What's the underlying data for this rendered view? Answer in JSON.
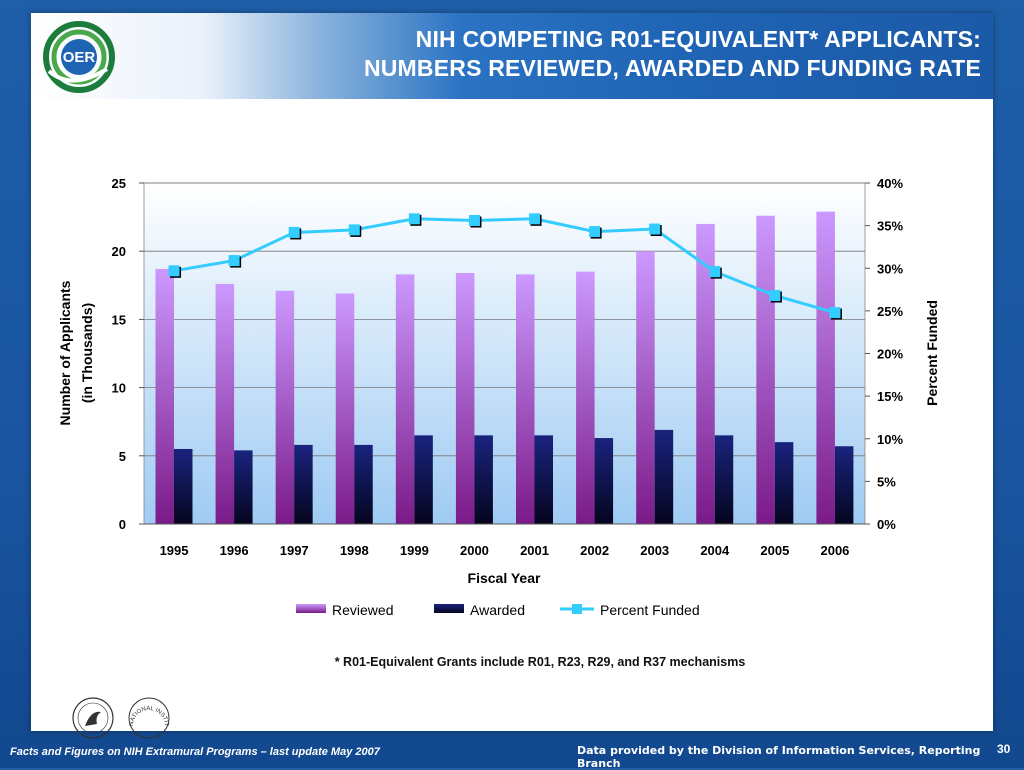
{
  "slide": {
    "title_line1": "NIH COMPETING R01-EQUIVALENT* APPLICANTS:",
    "title_line2": "NUMBERS REVIEWED, AWARDED AND FUNDING RATE",
    "logo_text": "OER",
    "footnote": "* R01-Equivalent Grants include R01, R23, R29, and R37 mechanisms",
    "footer_left": "Facts and Figures on NIH Extramural Programs – last update May 2007",
    "footer_center": "Data provided by the Division of Information Services, Reporting Branch",
    "page_number": "30",
    "nih_seal_text": "NATIONAL INSTITUTES OF HEALTH"
  },
  "colors": {
    "reviewed_top": "#cc99ff",
    "reviewed_bottom": "#7a1a88",
    "awarded_top": "#1a237e",
    "awarded_bottom": "#05051e",
    "percent_line": "#33ccff",
    "plot_bg_top": "#ffffff",
    "plot_bg_bottom": "#9fcbf3",
    "title_bar": "#1f63b3",
    "slide_bg": "#1e5fa8"
  },
  "chart_data": {
    "type": "bar",
    "categories": [
      "1995",
      "1996",
      "1997",
      "1998",
      "1999",
      "2000",
      "2001",
      "2002",
      "2003",
      "2004",
      "2005",
      "2006"
    ],
    "series": [
      {
        "name": "Reviewed",
        "type": "bar",
        "axis": "left",
        "values": [
          18.7,
          17.6,
          17.1,
          16.9,
          18.3,
          18.4,
          18.3,
          18.5,
          20.0,
          22.0,
          22.6,
          22.9
        ]
      },
      {
        "name": "Awarded",
        "type": "bar",
        "axis": "left",
        "values": [
          5.5,
          5.4,
          5.8,
          5.8,
          6.5,
          6.5,
          6.5,
          6.3,
          6.9,
          6.5,
          6.0,
          5.7
        ]
      },
      {
        "name": "Percent Funded",
        "type": "line",
        "axis": "right",
        "values": [
          29.7,
          30.9,
          34.2,
          34.5,
          35.8,
          35.6,
          35.8,
          34.3,
          34.6,
          29.6,
          26.8,
          24.8
        ]
      }
    ],
    "xlabel": "Fiscal Year",
    "ylabel_line1": "Number of Applicants",
    "ylabel_line2": "(in Thousands)",
    "y2label": "Percent Funded",
    "ylim": [
      0,
      25
    ],
    "yticks": [
      "0",
      "5",
      "10",
      "15",
      "20",
      "25"
    ],
    "y2lim": [
      0,
      40
    ],
    "y2ticks": [
      "0%",
      "5%",
      "10%",
      "15%",
      "20%",
      "25%",
      "30%",
      "35%",
      "40%"
    ],
    "grid": true,
    "legend_position": "bottom"
  }
}
